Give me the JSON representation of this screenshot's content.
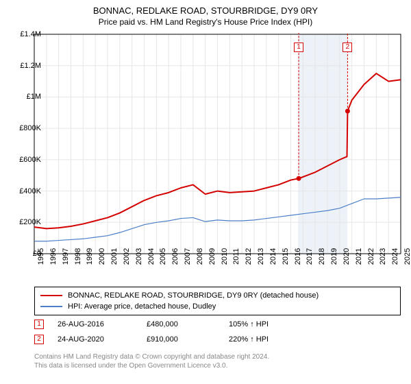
{
  "title": "BONNAC, REDLAKE ROAD, STOURBRIDGE, DY9 0RY",
  "subtitle": "Price paid vs. HM Land Registry's House Price Index (HPI)",
  "chart": {
    "type": "line",
    "background_color": "#ffffff",
    "grid_color": "#e6e6e6",
    "axis_color": "#000000",
    "x_years": [
      1995,
      1996,
      1997,
      1998,
      1999,
      2000,
      2001,
      2002,
      2003,
      2004,
      2005,
      2006,
      2007,
      2008,
      2009,
      2010,
      2011,
      2012,
      2013,
      2014,
      2015,
      2016,
      2017,
      2018,
      2019,
      2020,
      2021,
      2022,
      2023,
      2024,
      2025
    ],
    "ylim": [
      0,
      1400000
    ],
    "ytick_step": 200000,
    "y_tick_labels": [
      "£0",
      "£200K",
      "£400K",
      "£600K",
      "£800K",
      "£1M",
      "£1.2M",
      "£1.4M"
    ],
    "shaded_band": {
      "x_start": 2016.6,
      "x_end": 2020.6,
      "color": "#dfe8f3"
    },
    "series": [
      {
        "name": "price_paid",
        "label": "BONNAC, REDLAKE ROAD, STOURBRIDGE, DY9 0RY (detached house)",
        "color": "#d40000",
        "line_width": 2,
        "points": [
          [
            1995,
            170000
          ],
          [
            1996,
            160000
          ],
          [
            1997,
            165000
          ],
          [
            1998,
            175000
          ],
          [
            1999,
            190000
          ],
          [
            2000,
            210000
          ],
          [
            2001,
            230000
          ],
          [
            2002,
            260000
          ],
          [
            2003,
            300000
          ],
          [
            2004,
            340000
          ],
          [
            2005,
            370000
          ],
          [
            2006,
            390000
          ],
          [
            2007,
            420000
          ],
          [
            2008,
            440000
          ],
          [
            2009,
            380000
          ],
          [
            2010,
            400000
          ],
          [
            2011,
            390000
          ],
          [
            2012,
            395000
          ],
          [
            2013,
            400000
          ],
          [
            2014,
            420000
          ],
          [
            2015,
            440000
          ],
          [
            2016,
            470000
          ],
          [
            2016.65,
            480000
          ],
          [
            2017,
            490000
          ],
          [
            2018,
            520000
          ],
          [
            2019,
            560000
          ],
          [
            2020,
            600000
          ],
          [
            2020.6,
            620000
          ],
          [
            2020.65,
            910000
          ],
          [
            2021,
            980000
          ],
          [
            2022,
            1080000
          ],
          [
            2023,
            1150000
          ],
          [
            2024,
            1100000
          ],
          [
            2025,
            1110000
          ]
        ]
      },
      {
        "name": "hpi",
        "label": "HPI: Average price, detached house, Dudley",
        "color": "#4a7ec8",
        "line_width": 1.2,
        "points": [
          [
            1995,
            80000
          ],
          [
            1996,
            80000
          ],
          [
            1997,
            85000
          ],
          [
            1998,
            90000
          ],
          [
            1999,
            95000
          ],
          [
            2000,
            105000
          ],
          [
            2001,
            115000
          ],
          [
            2002,
            135000
          ],
          [
            2003,
            160000
          ],
          [
            2004,
            185000
          ],
          [
            2005,
            200000
          ],
          [
            2006,
            210000
          ],
          [
            2007,
            225000
          ],
          [
            2008,
            230000
          ],
          [
            2009,
            205000
          ],
          [
            2010,
            215000
          ],
          [
            2011,
            210000
          ],
          [
            2012,
            210000
          ],
          [
            2013,
            215000
          ],
          [
            2014,
            225000
          ],
          [
            2015,
            235000
          ],
          [
            2016,
            245000
          ],
          [
            2017,
            255000
          ],
          [
            2018,
            265000
          ],
          [
            2019,
            275000
          ],
          [
            2020,
            290000
          ],
          [
            2021,
            320000
          ],
          [
            2022,
            350000
          ],
          [
            2023,
            350000
          ],
          [
            2024,
            355000
          ],
          [
            2025,
            360000
          ]
        ]
      }
    ],
    "markers": [
      {
        "label": "1",
        "x": 2016.65,
        "y": 480000,
        "dot_color": "#d40000"
      },
      {
        "label": "2",
        "x": 2020.65,
        "y": 910000,
        "dot_color": "#d40000"
      }
    ]
  },
  "footnotes": [
    {
      "marker": "1",
      "date": "26-AUG-2016",
      "price": "£480,000",
      "pct": "105% ↑ HPI"
    },
    {
      "marker": "2",
      "date": "24-AUG-2020",
      "price": "£910,000",
      "pct": "220% ↑ HPI"
    }
  ],
  "fine_print_1": "Contains HM Land Registry data © Crown copyright and database right 2024.",
  "fine_print_2": "This data is licensed under the Open Government Licence v3.0."
}
